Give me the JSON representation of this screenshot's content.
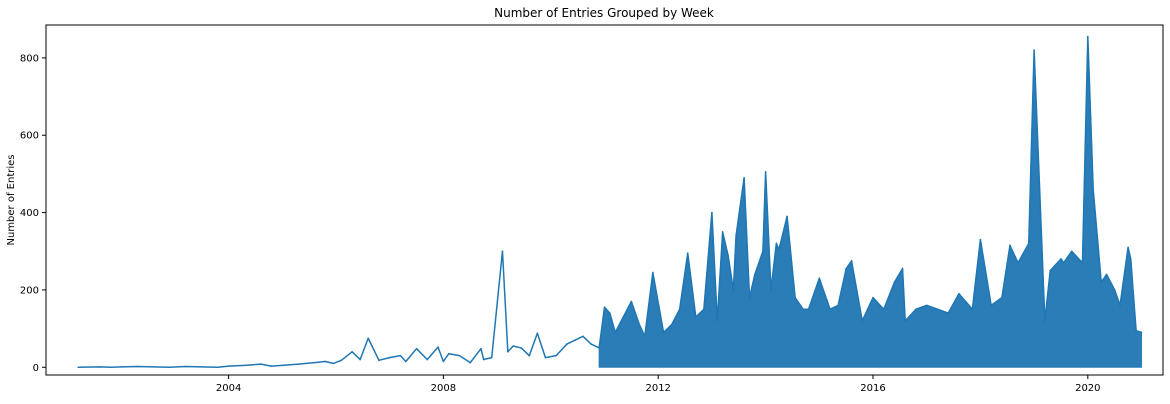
{
  "chart_data": {
    "type": "line",
    "title": "Number of Entries Grouped by Week",
    "xlabel": "",
    "ylabel": "Number of Entries",
    "xlim": [
      2000.6,
      2021.4
    ],
    "ylim": [
      -20,
      885
    ],
    "x_ticks": [
      2004,
      2008,
      2012,
      2016,
      2020
    ],
    "x_tick_labels": [
      "2004",
      "2008",
      "2012",
      "2016",
      "2020"
    ],
    "y_ticks": [
      0,
      200,
      400,
      600,
      800
    ],
    "y_tick_labels": [
      "0",
      "200",
      "400",
      "600",
      "800"
    ],
    "grid": false,
    "legend": "none",
    "series_color": "#1f77b4",
    "dense_region": [
      2010.9,
      2021.0
    ],
    "series": [
      {
        "x": [
          2001.2,
          2001.6,
          2001.8,
          2002.0,
          2002.3,
          2002.6,
          2002.9,
          2003.2,
          2003.5,
          2003.8,
          2004.0,
          2004.3,
          2004.6,
          2004.8,
          2005.0,
          2005.3,
          2005.6,
          2005.8,
          2005.95,
          2006.1,
          2006.3,
          2006.45,
          2006.6,
          2006.8,
          2007.0,
          2007.2,
          2007.3,
          2007.5,
          2007.7,
          2007.9,
          2008.0,
          2008.1,
          2008.3,
          2008.5,
          2008.7,
          2008.75,
          2008.9,
          2009.1,
          2009.2,
          2009.3,
          2009.45,
          2009.6,
          2009.75,
          2009.9,
          2010.1,
          2010.3,
          2010.45,
          2010.6,
          2010.75,
          2010.9,
          2011.0,
          2011.1,
          2011.2,
          2011.35,
          2011.5,
          2011.65,
          2011.75,
          2011.9,
          2012.1,
          2012.25,
          2012.4,
          2012.55,
          2012.7,
          2012.85,
          2013.0,
          2013.1,
          2013.2,
          2013.3,
          2013.4,
          2013.45,
          2013.6,
          2013.7,
          2013.8,
          2013.95,
          2014.0,
          2014.1,
          2014.2,
          2014.25,
          2014.4,
          2014.55,
          2014.7,
          2014.8,
          2015.0,
          2015.2,
          2015.35,
          2015.5,
          2015.6,
          2015.8,
          2016.0,
          2016.2,
          2016.4,
          2016.55,
          2016.6,
          2016.8,
          2017.0,
          2017.2,
          2017.4,
          2017.6,
          2017.85,
          2018.0,
          2018.2,
          2018.4,
          2018.55,
          2018.7,
          2018.9,
          2019.0,
          2019.2,
          2019.3,
          2019.5,
          2019.55,
          2019.7,
          2019.9,
          2020.0,
          2020.1,
          2020.2,
          2020.25,
          2020.35,
          2020.5,
          2020.6,
          2020.75,
          2020.8,
          2020.85,
          2020.9,
          2021.0
        ],
        "y": [
          0,
          1,
          0,
          1,
          2,
          1,
          0,
          2,
          1,
          0,
          3,
          5,
          8,
          3,
          5,
          8,
          12,
          15,
          10,
          18,
          40,
          20,
          75,
          18,
          25,
          30,
          15,
          48,
          20,
          52,
          15,
          35,
          30,
          12,
          48,
          20,
          25,
          300,
          40,
          55,
          50,
          30,
          88,
          25,
          30,
          60,
          70,
          80,
          60,
          50,
          155,
          140,
          90,
          130,
          170,
          110,
          80,
          245,
          90,
          110,
          150,
          295,
          130,
          150,
          400,
          120,
          350,
          290,
          200,
          340,
          490,
          180,
          240,
          300,
          505,
          200,
          320,
          305,
          390,
          180,
          150,
          150,
          230,
          150,
          160,
          255,
          275,
          120,
          180,
          150,
          220,
          255,
          120,
          150,
          160,
          150,
          140,
          190,
          150,
          330,
          160,
          180,
          315,
          270,
          320,
          820,
          120,
          250,
          280,
          270,
          300,
          270,
          855,
          460,
          300,
          220,
          240,
          200,
          160,
          310,
          280,
          185,
          95,
          90
        ]
      }
    ]
  }
}
